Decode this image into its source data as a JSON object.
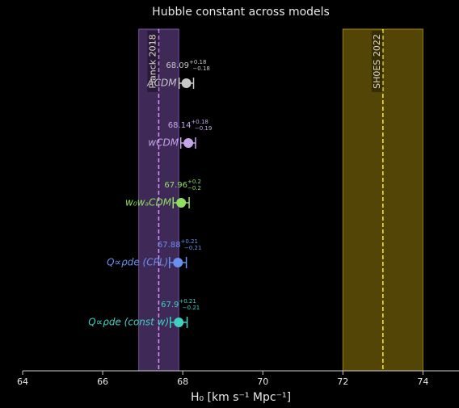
{
  "chart_data": {
    "type": "errorbar",
    "title": "Hubble constant across models",
    "x_label": "H₀ [km s⁻¹ Mpc⁻¹]",
    "categories": [
      "ΛCDM",
      "wCDM",
      "w₀wₐCDM",
      "Q∝ρde (CPL)",
      "Q∝ρde (const w)"
    ],
    "values": [
      68.09,
      68.14,
      67.96,
      67.88,
      67.9
    ],
    "err_plus": [
      0.18,
      0.18,
      0.2,
      0.21,
      0.21
    ],
    "err_minus": [
      0.18,
      0.19,
      0.2,
      0.21,
      0.21
    ],
    "colors": [
      "#c8c8c8",
      "#c3a6e8",
      "#8fe060",
      "#6b8ff0",
      "#40d0c0"
    ],
    "bands": [
      {
        "name": "Planck 2018",
        "center": 67.4,
        "low": 66.9,
        "high": 67.9,
        "color": "#8a5cc0"
      },
      {
        "name": "SH0ES 2022",
        "center": 73.0,
        "low": 72.0,
        "high": 74.0,
        "color": "#b8980a"
      }
    ],
    "xlim": [
      64,
      74.8
    ],
    "xticks": [
      64,
      66,
      68,
      70,
      72,
      74
    ]
  }
}
